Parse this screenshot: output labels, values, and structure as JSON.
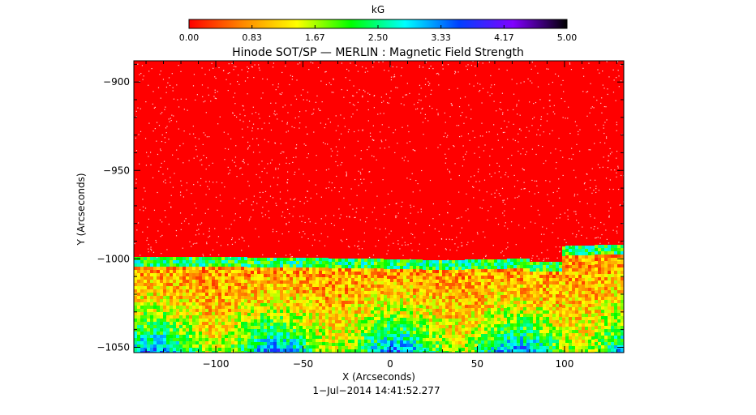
{
  "chart_data": {
    "type": "heatmap",
    "title": "Hinode SOT/SP — MERLIN : Magnetic Field Strength",
    "xlabel": "X (Arcseconds)",
    "ylabel": "Y (Arcseconds)",
    "footer": "1−Jul−2014 14:41:52.277",
    "xlim": [
      -147,
      134
    ],
    "ylim": [
      -1053,
      -888
    ],
    "x_ticks": [
      {
        "value": -100,
        "label": "−100"
      },
      {
        "value": -50,
        "label": "−50"
      },
      {
        "value": 0,
        "label": "0"
      },
      {
        "value": 50,
        "label": "50"
      },
      {
        "value": 100,
        "label": "100"
      }
    ],
    "y_ticks": [
      {
        "value": -900,
        "label": "−900"
      },
      {
        "value": -950,
        "label": "−950"
      },
      {
        "value": -1000,
        "label": "−1000"
      },
      {
        "value": -1050,
        "label": "−1050"
      }
    ],
    "colorbar": {
      "unit": "kG",
      "min": 0.0,
      "max": 5.0,
      "ticks": [
        "0.00",
        "0.83",
        "1.67",
        "2.50",
        "3.33",
        "4.17",
        "5.00"
      ],
      "colors": [
        "#ff0000",
        "#ff8800",
        "#ffff00",
        "#00ff00",
        "#00ffff",
        "#0040ff",
        "#8000ff",
        "#000000"
      ]
    },
    "limb_boundary": [
      {
        "x": -147,
        "y": -999
      },
      {
        "x": -120,
        "y": -999
      },
      {
        "x": -20,
        "y": -1000
      },
      {
        "x": 30,
        "y": -1001
      },
      {
        "x": 80,
        "y": -1000
      },
      {
        "x": 80,
        "y": -1002
      },
      {
        "x": 98,
        "y": -1002
      },
      {
        "x": 98,
        "y": -993
      },
      {
        "x": 134,
        "y": -992
      }
    ],
    "field_strength": {
      "above_limb_kG": 0.0,
      "near_limb_kG": 0.7,
      "deep_region_kG": 2.5
    }
  }
}
